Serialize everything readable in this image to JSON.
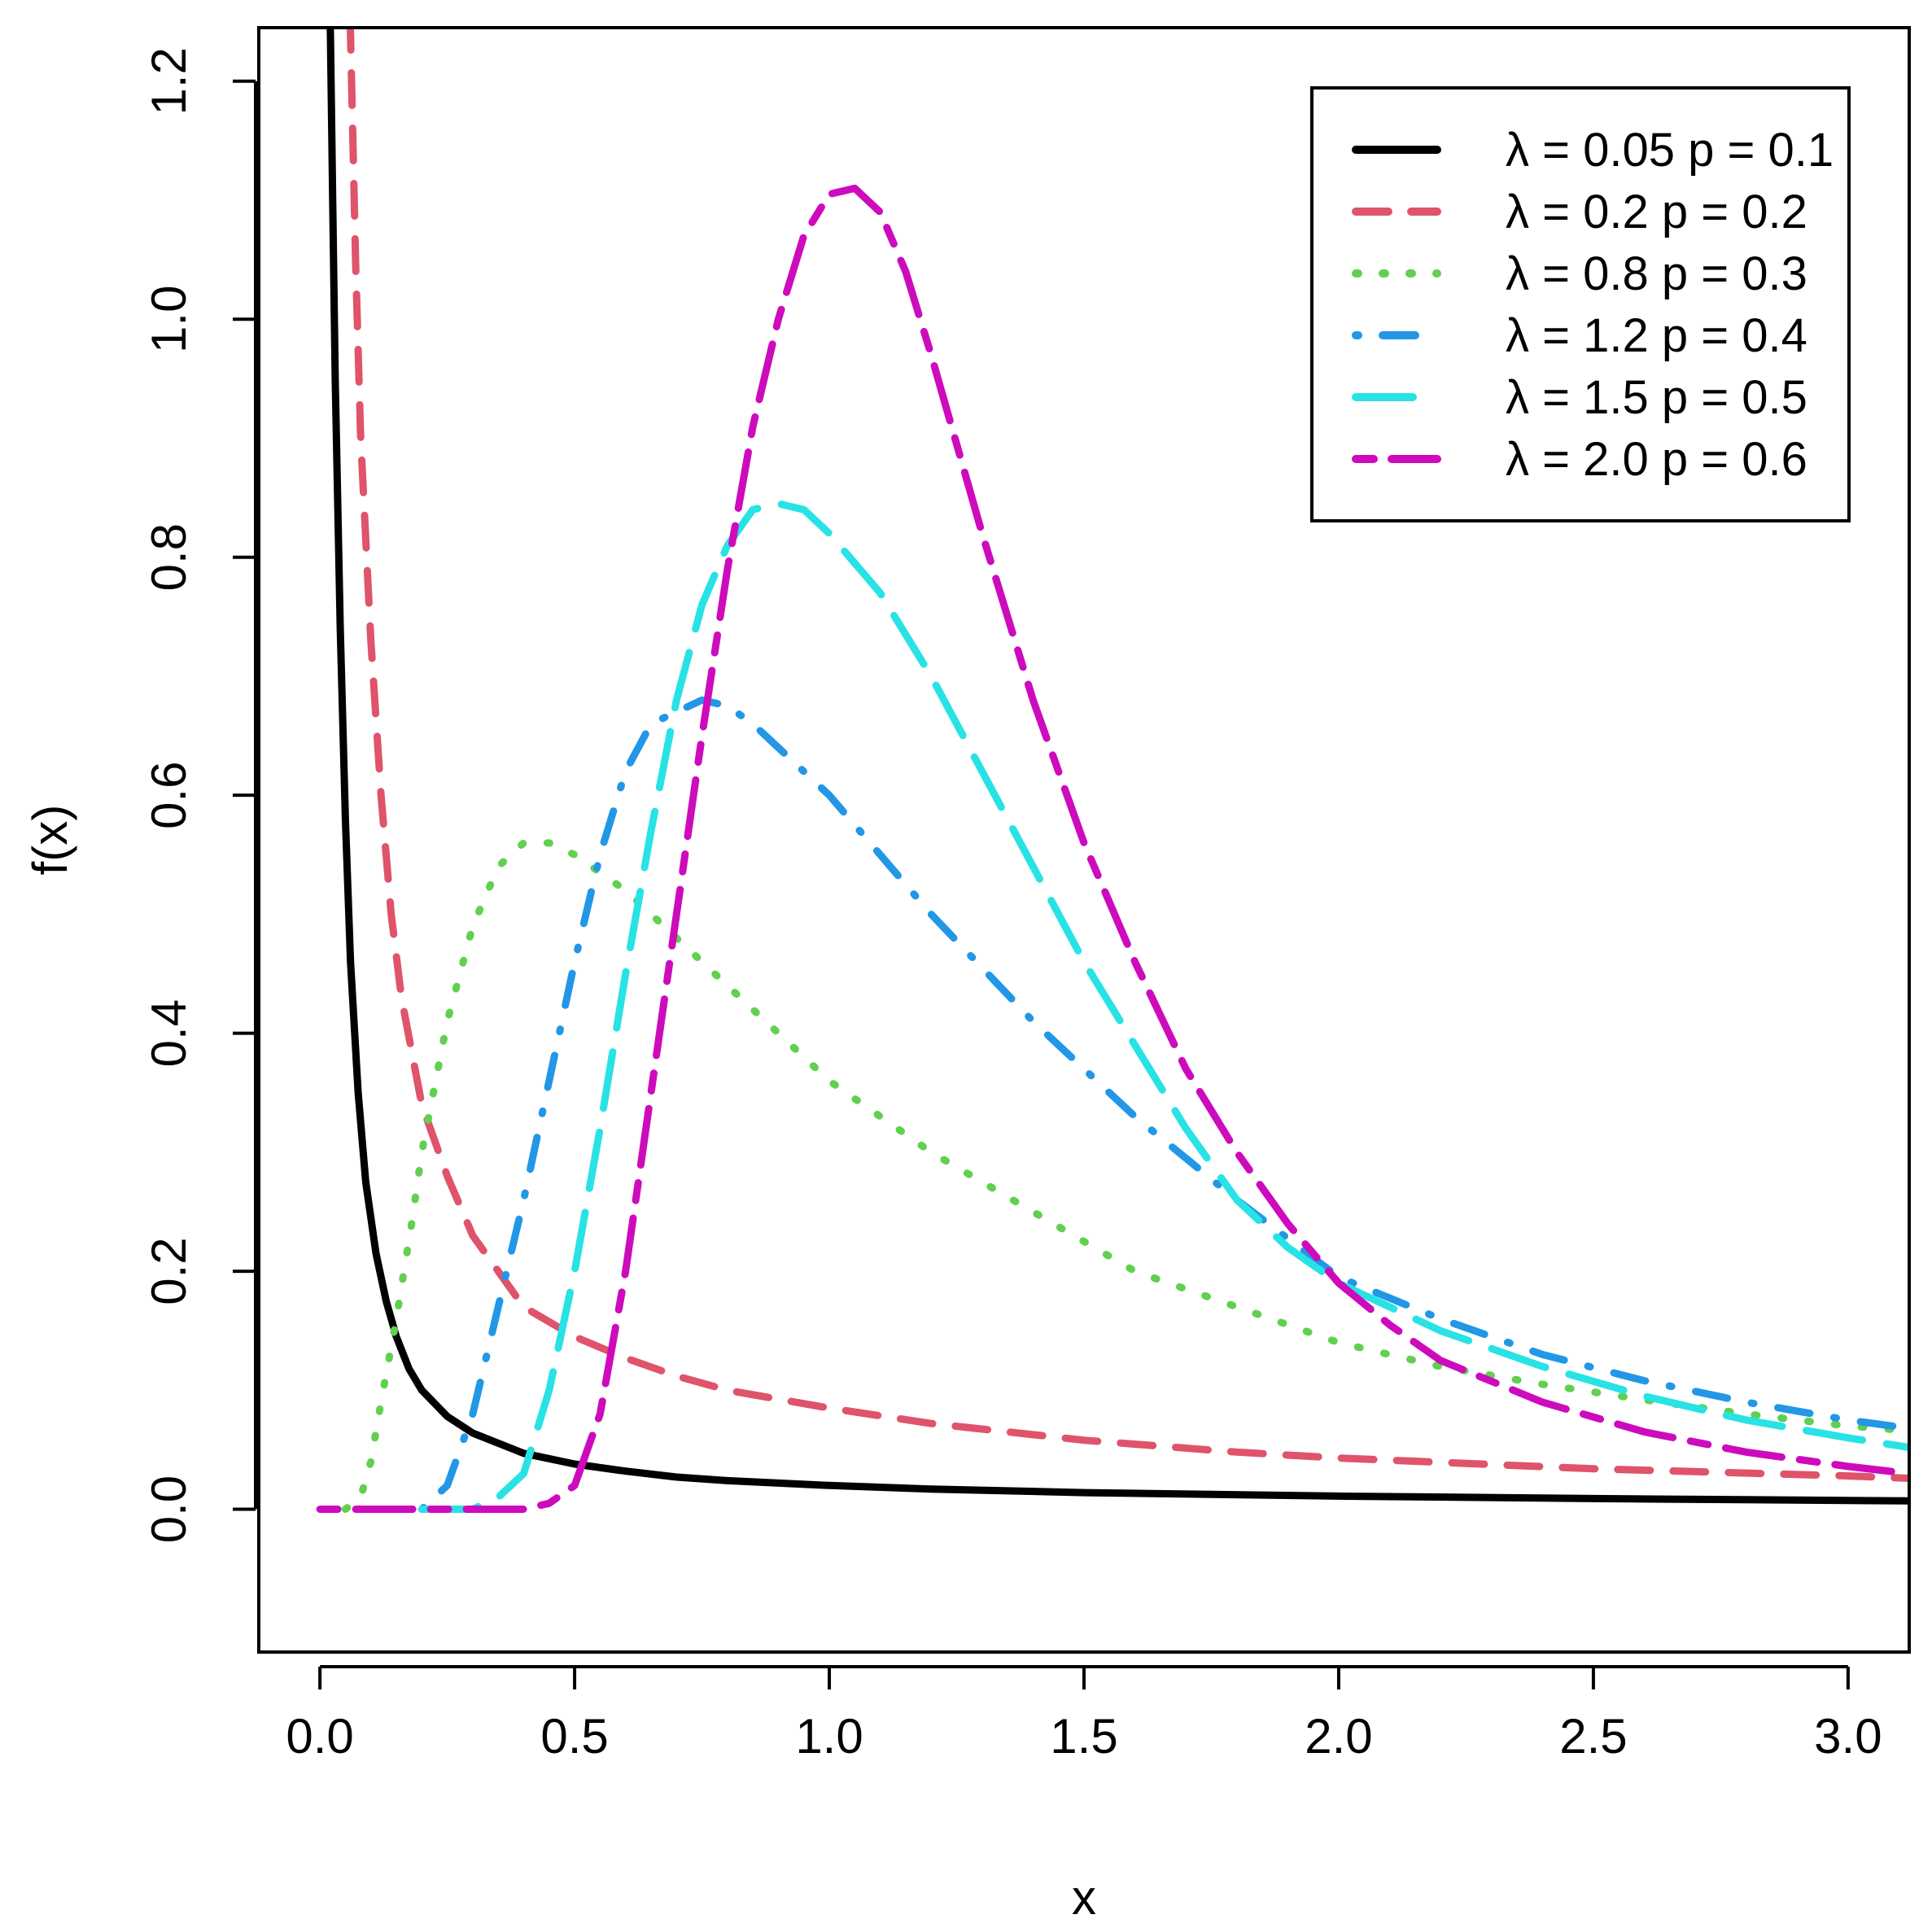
{
  "chart_data": {
    "type": "line",
    "title": "",
    "xlabel": "x",
    "ylabel": "f(x)",
    "xlim": [
      -0.12,
      3.12
    ],
    "ylim": [
      -0.12,
      1.245
    ],
    "x_ticks": [
      0.0,
      0.5,
      1.0,
      1.5,
      2.0,
      2.5,
      3.0
    ],
    "x_tick_labels": [
      "0.0",
      "0.5",
      "1.0",
      "1.5",
      "2.0",
      "2.5",
      "3.0"
    ],
    "y_ticks": [
      0.0,
      0.2,
      0.4,
      0.6,
      0.8,
      1.0,
      1.2
    ],
    "y_tick_labels": [
      "0.0",
      "0.2",
      "0.4",
      "0.6",
      "0.8",
      "1.0",
      "1.2"
    ],
    "grid": false,
    "legend_position": "top-right",
    "series": [
      {
        "name": "λ = 0.05  p = 0.1",
        "color": "#000000",
        "dash": "solid",
        "points": [
          [
            0.01,
            1.3
          ],
          [
            0.02,
            1.26
          ],
          [
            0.025,
            1.1
          ],
          [
            0.03,
            0.95
          ],
          [
            0.04,
            0.74
          ],
          [
            0.05,
            0.58
          ],
          [
            0.06,
            0.46
          ],
          [
            0.075,
            0.35
          ],
          [
            0.09,
            0.275
          ],
          [
            0.11,
            0.215
          ],
          [
            0.13,
            0.175
          ],
          [
            0.15,
            0.145
          ],
          [
            0.175,
            0.118
          ],
          [
            0.2,
            0.1
          ],
          [
            0.25,
            0.078
          ],
          [
            0.3,
            0.064
          ],
          [
            0.4,
            0.047
          ],
          [
            0.5,
            0.038
          ],
          [
            0.6,
            0.032
          ],
          [
            0.7,
            0.027
          ],
          [
            0.8,
            0.024
          ],
          [
            1.0,
            0.02
          ],
          [
            1.2,
            0.017
          ],
          [
            1.5,
            0.014
          ],
          [
            2.0,
            0.011
          ],
          [
            2.5,
            0.009
          ],
          [
            3.12,
            0.007
          ]
        ]
      },
      {
        "name": "λ = 0.2  p = 0.2",
        "color": "#DF536B",
        "dash": "dashed",
        "points": [
          [
            0.055,
            1.3
          ],
          [
            0.06,
            1.24
          ],
          [
            0.07,
            1.05
          ],
          [
            0.08,
            0.9
          ],
          [
            0.1,
            0.73
          ],
          [
            0.12,
            0.6
          ],
          [
            0.14,
            0.5
          ],
          [
            0.16,
            0.43
          ],
          [
            0.2,
            0.34
          ],
          [
            0.25,
            0.28
          ],
          [
            0.3,
            0.23
          ],
          [
            0.35,
            0.2
          ],
          [
            0.4,
            0.17
          ],
          [
            0.5,
            0.145
          ],
          [
            0.6,
            0.127
          ],
          [
            0.7,
            0.112
          ],
          [
            0.8,
            0.1
          ],
          [
            1.0,
            0.085
          ],
          [
            1.2,
            0.072
          ],
          [
            1.5,
            0.058
          ],
          [
            1.8,
            0.048
          ],
          [
            2.0,
            0.043
          ],
          [
            2.5,
            0.034
          ],
          [
            3.0,
            0.028
          ],
          [
            3.12,
            0.026
          ]
        ]
      },
      {
        "name": "λ = 0.8  p = 0.3",
        "color": "#61D04F",
        "dash": "dotted",
        "points": [
          [
            0.05,
            0.0
          ],
          [
            0.08,
            0.01
          ],
          [
            0.1,
            0.04
          ],
          [
            0.12,
            0.09
          ],
          [
            0.15,
            0.16
          ],
          [
            0.18,
            0.24
          ],
          [
            0.2,
            0.3
          ],
          [
            0.25,
            0.41
          ],
          [
            0.3,
            0.49
          ],
          [
            0.35,
            0.54
          ],
          [
            0.4,
            0.56
          ],
          [
            0.45,
            0.56
          ],
          [
            0.5,
            0.55
          ],
          [
            0.6,
            0.52
          ],
          [
            0.7,
            0.48
          ],
          [
            0.8,
            0.44
          ],
          [
            0.9,
            0.4
          ],
          [
            1.0,
            0.36
          ],
          [
            1.2,
            0.3
          ],
          [
            1.4,
            0.25
          ],
          [
            1.6,
            0.2
          ],
          [
            1.8,
            0.17
          ],
          [
            2.0,
            0.14
          ],
          [
            2.2,
            0.12
          ],
          [
            2.4,
            0.105
          ],
          [
            2.6,
            0.092
          ],
          [
            2.8,
            0.08
          ],
          [
            3.0,
            0.07
          ],
          [
            3.12,
            0.066
          ]
        ]
      },
      {
        "name": "λ = 1.2  p = 0.4",
        "color": "#2297E6",
        "dash": "dotdash",
        "points": [
          [
            0.2,
            0.0
          ],
          [
            0.25,
            0.02
          ],
          [
            0.3,
            0.08
          ],
          [
            0.35,
            0.17
          ],
          [
            0.4,
            0.26
          ],
          [
            0.45,
            0.36
          ],
          [
            0.5,
            0.46
          ],
          [
            0.55,
            0.55
          ],
          [
            0.6,
            0.62
          ],
          [
            0.65,
            0.66
          ],
          [
            0.7,
            0.67
          ],
          [
            0.75,
            0.68
          ],
          [
            0.8,
            0.675
          ],
          [
            0.85,
            0.66
          ],
          [
            0.9,
            0.64
          ],
          [
            1.0,
            0.6
          ],
          [
            1.1,
            0.55
          ],
          [
            1.2,
            0.5
          ],
          [
            1.4,
            0.41
          ],
          [
            1.6,
            0.33
          ],
          [
            1.8,
            0.26
          ],
          [
            2.0,
            0.195
          ],
          [
            2.2,
            0.16
          ],
          [
            2.4,
            0.13
          ],
          [
            2.6,
            0.108
          ],
          [
            2.8,
            0.09
          ],
          [
            3.0,
            0.075
          ],
          [
            3.12,
            0.068
          ]
        ]
      },
      {
        "name": "λ = 1.5  p = 0.5",
        "color": "#28E2E5",
        "dash": "longdash",
        "points": [
          [
            0.2,
            0.0
          ],
          [
            0.3,
            0.0
          ],
          [
            0.35,
            0.01
          ],
          [
            0.4,
            0.03
          ],
          [
            0.45,
            0.1
          ],
          [
            0.5,
            0.2
          ],
          [
            0.55,
            0.32
          ],
          [
            0.6,
            0.45
          ],
          [
            0.65,
            0.57
          ],
          [
            0.7,
            0.68
          ],
          [
            0.75,
            0.76
          ],
          [
            0.8,
            0.81
          ],
          [
            0.85,
            0.84
          ],
          [
            0.9,
            0.845
          ],
          [
            0.95,
            0.84
          ],
          [
            1.0,
            0.82
          ],
          [
            1.1,
            0.77
          ],
          [
            1.2,
            0.7
          ],
          [
            1.3,
            0.62
          ],
          [
            1.4,
            0.54
          ],
          [
            1.5,
            0.46
          ],
          [
            1.6,
            0.39
          ],
          [
            1.7,
            0.32
          ],
          [
            1.8,
            0.26
          ],
          [
            1.9,
            0.22
          ],
          [
            2.0,
            0.19
          ],
          [
            2.2,
            0.15
          ],
          [
            2.4,
            0.12
          ],
          [
            2.6,
            0.095
          ],
          [
            2.8,
            0.075
          ],
          [
            3.0,
            0.06
          ],
          [
            3.12,
            0.052
          ]
        ]
      },
      {
        "name": "λ = 2.0  p = 0.6",
        "color": "#CD0BBC",
        "dash": "twodash",
        "points": [
          [
            0.0,
            0.0
          ],
          [
            0.1,
            0.0
          ],
          [
            0.2,
            0.0
          ],
          [
            0.3,
            0.0
          ],
          [
            0.4,
            0.0
          ],
          [
            0.45,
            0.005
          ],
          [
            0.5,
            0.02
          ],
          [
            0.55,
            0.08
          ],
          [
            0.6,
            0.2
          ],
          [
            0.65,
            0.35
          ],
          [
            0.7,
            0.5
          ],
          [
            0.75,
            0.65
          ],
          [
            0.8,
            0.79
          ],
          [
            0.85,
            0.91
          ],
          [
            0.9,
            1.0
          ],
          [
            0.95,
            1.07
          ],
          [
            1.0,
            1.105
          ],
          [
            1.05,
            1.11
          ],
          [
            1.1,
            1.09
          ],
          [
            1.15,
            1.04
          ],
          [
            1.2,
            0.97
          ],
          [
            1.3,
            0.82
          ],
          [
            1.4,
            0.68
          ],
          [
            1.5,
            0.56
          ],
          [
            1.6,
            0.46
          ],
          [
            1.7,
            0.37
          ],
          [
            1.8,
            0.3
          ],
          [
            1.9,
            0.24
          ],
          [
            2.0,
            0.19
          ],
          [
            2.1,
            0.155
          ],
          [
            2.2,
            0.125
          ],
          [
            2.4,
            0.09
          ],
          [
            2.6,
            0.065
          ],
          [
            2.8,
            0.048
          ],
          [
            3.0,
            0.036
          ],
          [
            3.12,
            0.03
          ]
        ]
      }
    ]
  }
}
